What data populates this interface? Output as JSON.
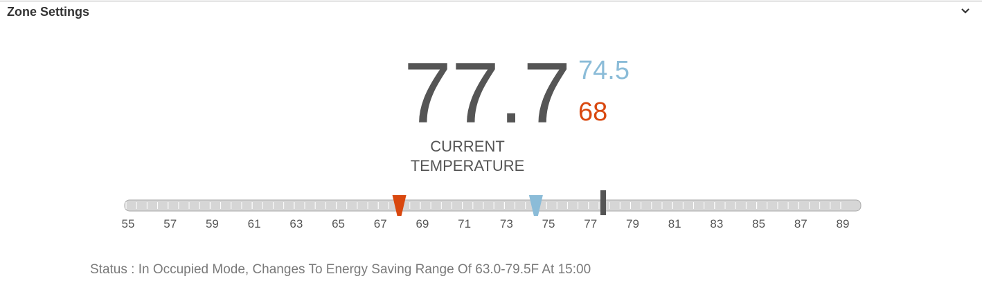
{
  "header": {
    "title": "Zone Settings"
  },
  "current": {
    "value": 77.7,
    "label_line1": "CURRENT",
    "label_line2": "TEMPERATURE"
  },
  "setpoints": {
    "cool": 74.5,
    "heat": 68
  },
  "scale": {
    "ticks": [
      55,
      57,
      59,
      61,
      63,
      65,
      67,
      69,
      71,
      73,
      75,
      77,
      79,
      81,
      83,
      85,
      87,
      89
    ]
  },
  "status": "Status : In Occupied Mode, Changes To Energy Saving Range Of 63.0-79.5F At 15:00"
}
